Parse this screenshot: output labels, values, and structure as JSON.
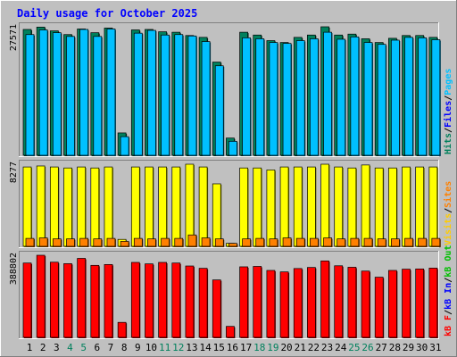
{
  "chart_data": {
    "type": "bar",
    "title": "Daily usage for October 2025",
    "categories": [
      "1",
      "2",
      "3",
      "4",
      "5",
      "6",
      "7",
      "8",
      "9",
      "10",
      "11",
      "12",
      "13",
      "14",
      "15",
      "16",
      "17",
      "18",
      "19",
      "20",
      "21",
      "22",
      "23",
      "24",
      "25",
      "26",
      "27",
      "28",
      "29",
      "30",
      "31"
    ],
    "weekend_days": [
      4,
      5,
      11,
      12,
      18,
      19,
      25,
      26
    ],
    "panels": [
      {
        "name": "hits-files-pages",
        "scale_label": "27571",
        "max": 27571,
        "legend": [
          {
            "text": "Hits",
            "color": "#00805c"
          },
          {
            "text": "/",
            "color": "#000000"
          },
          {
            "text": "Files",
            "color": "#0000ff"
          },
          {
            "text": "/",
            "color": "#000000"
          },
          {
            "text": "Pages",
            "color": "#00c0ff"
          }
        ],
        "series": [
          {
            "name": "Hits",
            "color": "#00805c",
            "values": [
              27000,
              27500,
              26700,
              25900,
              27100,
              26300,
              27300,
              4800,
              26900,
              27000,
              26500,
              26400,
              25700,
              25300,
              20000,
              3700,
              26400,
              25800,
              24600,
              24200,
              25300,
              25800,
              27571,
              25800,
              26000,
              25000,
              24200,
              25100,
              25700,
              25700,
              25300
            ]
          },
          {
            "name": "Files",
            "color": "#00c0ff",
            "values": [
              25900,
              26900,
              26300,
              25500,
              27000,
              25500,
              27100,
              4000,
              26200,
              26800,
              25800,
              25900,
              25600,
              24400,
              19200,
              3000,
              25200,
              25000,
              24200,
              24000,
              24600,
              25000,
              26400,
              24900,
              25400,
              24200,
              23800,
              24700,
              25300,
              25200,
              24800
            ]
          }
        ]
      },
      {
        "name": "visits-sites",
        "scale_label": "8277",
        "max": 8277,
        "legend": [
          {
            "text": "Visits",
            "color": "#ffcc00"
          },
          {
            "text": "/",
            "color": "#000000"
          },
          {
            "text": "Sites",
            "color": "#ff8000"
          }
        ],
        "series": [
          {
            "name": "Visits",
            "color": "#ffff00",
            "values": [
              8000,
              8100,
              8000,
              7900,
              8000,
              7900,
              8000,
              700,
              8000,
              8000,
              8000,
              8000,
              8277,
              8000,
              6300,
              300,
              7900,
              7900,
              7700,
              8000,
              8000,
              8000,
              8277,
              8000,
              7900,
              8200,
              7900,
              7900,
              8000,
              8000,
              8000
            ]
          },
          {
            "name": "Sites",
            "color": "#ff8000",
            "values": [
              800,
              850,
              750,
              750,
              800,
              750,
              800,
              500,
              800,
              750,
              800,
              800,
              1150,
              850,
              750,
              300,
              750,
              800,
              750,
              850,
              800,
              800,
              850,
              750,
              800,
              800,
              750,
              750,
              800,
              800,
              800
            ]
          }
        ]
      },
      {
        "name": "kb",
        "scale_label": "388802",
        "max": 388802,
        "legend": [
          {
            "text": "kB F",
            "color": "#ff0000"
          },
          {
            "text": "/",
            "color": "#000000"
          },
          {
            "text": "kB In",
            "color": "#0000ff"
          },
          {
            "text": "/",
            "color": "#000000"
          },
          {
            "text": "kB Out",
            "color": "#00c000"
          }
        ],
        "series": [
          {
            "name": "kB F",
            "color": "#ff0000",
            "values": [
              352000,
              388802,
              356000,
              349000,
              374000,
              341000,
              345000,
              71000,
              355000,
              348000,
              355000,
              352000,
              338000,
              327000,
              272000,
              52000,
              334000,
              336000,
              317000,
              310000,
              326000,
              331000,
              362000,
              339000,
              332000,
              314000,
              285000,
              317000,
              323000,
              324000,
              328000
            ]
          }
        ]
      }
    ]
  }
}
